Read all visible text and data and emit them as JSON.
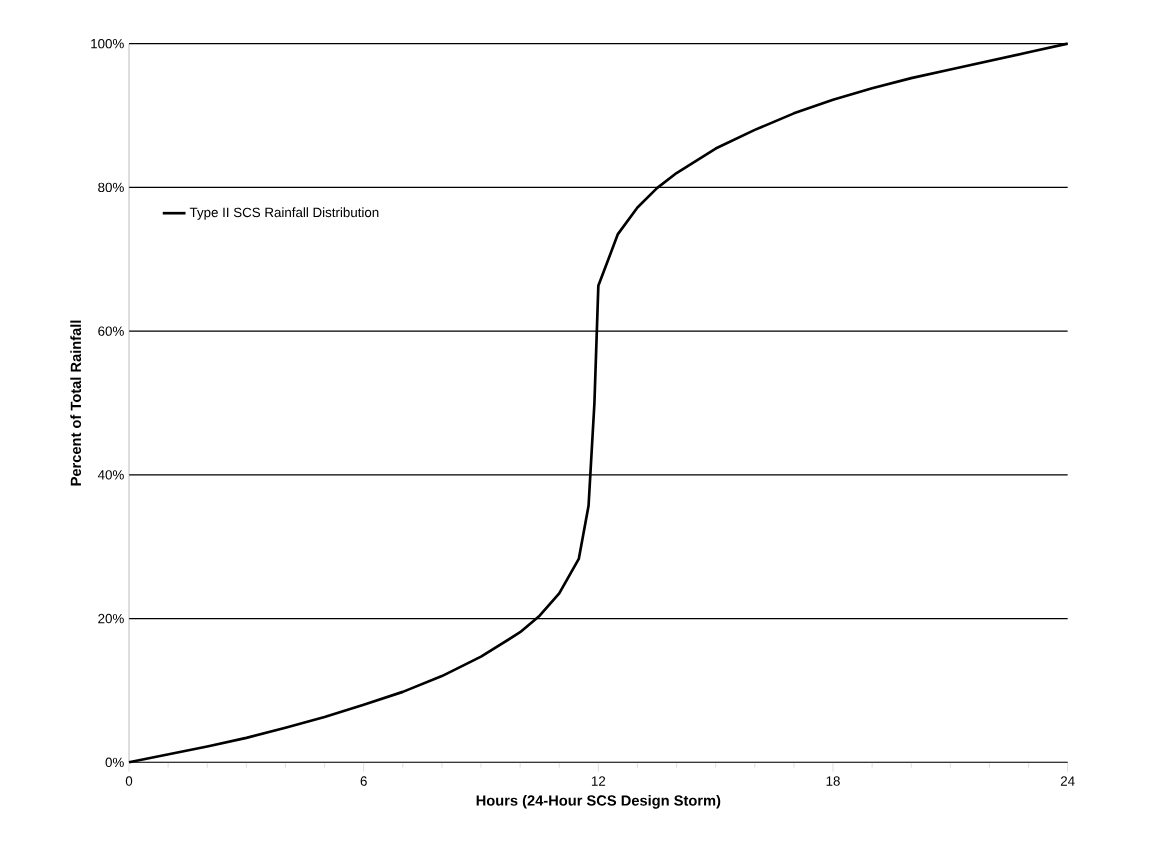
{
  "chart_data": {
    "type": "line",
    "xlabel": "Hours (24-Hour SCS Design Storm)",
    "ylabel": "Percent of Total Rainfall",
    "series": [
      {
        "name": "Type II SCS Rainfall Distribution",
        "color": "#000000",
        "x": [
          0,
          1,
          2,
          3,
          4,
          5,
          6,
          7,
          8,
          9,
          10,
          10.5,
          11,
          11.5,
          11.75,
          11.9,
          12,
          12.5,
          13,
          13.5,
          14,
          15,
          16,
          17,
          18,
          19,
          20,
          21,
          22,
          23,
          24
        ],
        "values": [
          0,
          1.1,
          2.2,
          3.4,
          4.8,
          6.3,
          8.0,
          9.8,
          12.0,
          14.7,
          18.1,
          20.4,
          23.5,
          28.3,
          35.7,
          50,
          66.3,
          73.5,
          77.2,
          79.9,
          82.0,
          85.4,
          88.0,
          90.3,
          92.2,
          93.8,
          95.2,
          96.4,
          97.6,
          98.8,
          100
        ]
      }
    ],
    "xlim": [
      0,
      24
    ],
    "xticks": [
      0,
      6,
      12,
      18,
      24
    ],
    "ylim": [
      0,
      100
    ],
    "yticks": [
      {
        "value": 0,
        "label": "0%"
      },
      {
        "value": 20,
        "label": "20%"
      },
      {
        "value": 40,
        "label": "40%"
      },
      {
        "value": 60,
        "label": "60%"
      },
      {
        "value": 80,
        "label": "80%"
      },
      {
        "value": 100,
        "label": "100%"
      }
    ],
    "grid": "y",
    "legend": "top left",
    "marker": "none",
    "line_style": "solid"
  }
}
